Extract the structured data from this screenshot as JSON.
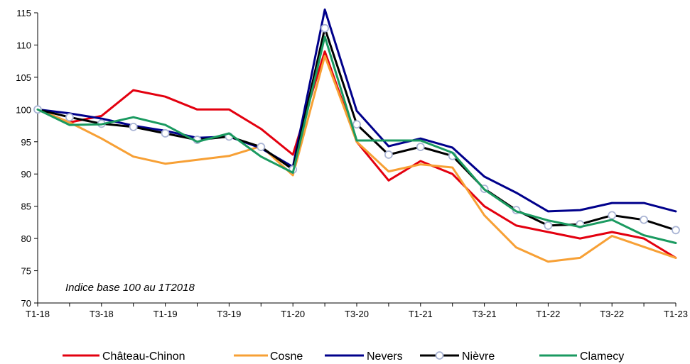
{
  "chart_data": {
    "type": "line",
    "title": "",
    "xlabel": "",
    "ylabel": "",
    "annotation": "Indice base 100 au 1T2018",
    "x": [
      "T1-18",
      "T2-18",
      "T3-18",
      "T4-18",
      "T1-19",
      "T2-19",
      "T3-19",
      "T4-19",
      "T1-20",
      "T2-20",
      "T3-20",
      "T4-20",
      "T1-21",
      "T2-21",
      "T3-21",
      "T4-21",
      "T1-22",
      "T2-22",
      "T3-22",
      "T4-22",
      "T1-23"
    ],
    "x_tick_labels": [
      "T1-18",
      "",
      "T3-18",
      "",
      "T1-19",
      "",
      "T3-19",
      "",
      "T1-20",
      "",
      "T3-20",
      "",
      "T1-21",
      "",
      "T3-21",
      "",
      "T1-22",
      "",
      "T3-22",
      "",
      "T1-23"
    ],
    "ylim": [
      70,
      115
    ],
    "yticks": [
      70,
      75,
      80,
      85,
      90,
      95,
      100,
      105,
      110,
      115
    ],
    "grid": false,
    "legend_position": "bottom",
    "series": [
      {
        "name": "Château-Chinon",
        "color": "#e3000f",
        "marker": "none",
        "values": [
          100,
          98,
          99,
          103,
          102,
          100,
          100,
          97,
          93,
          109,
          95,
          89,
          92,
          90,
          85,
          82,
          81,
          80,
          81,
          80,
          77
        ]
      },
      {
        "name": "Cosne",
        "color": "#f7a035",
        "marker": "none",
        "values": [
          100,
          98,
          95.5,
          92.7,
          91.6,
          92.2,
          92.8,
          94.3,
          89.8,
          108.3,
          95,
          90.4,
          91.5,
          91,
          83.6,
          78.6,
          76.4,
          77,
          80.4,
          78.7,
          77
        ]
      },
      {
        "name": "Nevers",
        "color": "#00008b",
        "marker": "none",
        "values": [
          100,
          99.4,
          98.6,
          97.5,
          96.7,
          95.6,
          95.8,
          94,
          91.1,
          115.5,
          99.8,
          94.3,
          95.5,
          94.1,
          89.6,
          87.1,
          84.2,
          84.4,
          85.5,
          85.5,
          84.2
        ]
      },
      {
        "name": "Nièvre",
        "color": "#000000",
        "marker": "circle",
        "values": [
          100,
          98.8,
          97.8,
          97.3,
          96.3,
          95.3,
          95.8,
          94.2,
          90.7,
          112.6,
          97.7,
          93,
          94.2,
          92.8,
          87.7,
          84.4,
          82,
          82.2,
          83.6,
          82.9,
          81.3
        ]
      },
      {
        "name": "Clamecy",
        "color": "#1a9a60",
        "marker": "none",
        "values": [
          100,
          97.6,
          97.7,
          98.8,
          97.6,
          95,
          96.3,
          92.7,
          90.2,
          111.3,
          95.2,
          95.2,
          95.2,
          93.3,
          87.6,
          84.2,
          82.8,
          81.8,
          82.9,
          80.5,
          79.3
        ]
      }
    ]
  }
}
